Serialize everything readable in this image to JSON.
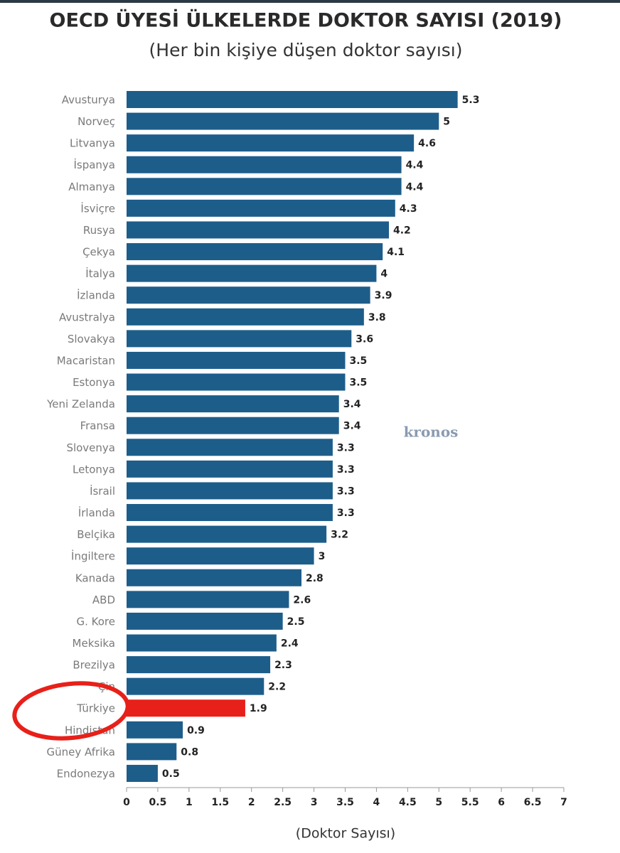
{
  "chart_data": {
    "type": "barh",
    "title": "OECD ÜYESİ ÜLKELERDE DOKTOR SAYISI (2019)",
    "subtitle": "(Her bin kişiye düşen doktor sayısı)",
    "x_label": "(Doktor Sayısı)",
    "watermark": "kronos",
    "categories": [
      "Avusturya",
      "Norveç",
      "Litvanya",
      "İspanya",
      "Almanya",
      "İsviçre",
      "Rusya",
      "Çekya",
      "İtalya",
      "İzlanda",
      "Avustralya",
      "Slovakya",
      "Macaristan",
      "Estonya",
      "Yeni Zelanda",
      "Fransa",
      "Slovenya",
      "Letonya",
      "İsrail",
      "İrlanda",
      "Belçika",
      "İngiltere",
      "Kanada",
      "ABD",
      "G. Kore",
      "Meksika",
      "Brezilya",
      "Çin",
      "Türkiye",
      "Hindistan",
      "Güney Afrika",
      "Endonezya"
    ],
    "values": [
      5.3,
      5,
      4.6,
      4.4,
      4.4,
      4.3,
      4.2,
      4.1,
      4,
      3.9,
      3.8,
      3.6,
      3.5,
      3.5,
      3.4,
      3.4,
      3.3,
      3.3,
      3.3,
      3.3,
      3.2,
      3,
      2.8,
      2.6,
      2.5,
      2.4,
      2.3,
      2.2,
      1.9,
      0.9,
      0.8,
      0.5
    ],
    "colors": [
      "#1d5d8a",
      "#1d5d8a",
      "#1d5d8a",
      "#1d5d8a",
      "#1d5d8a",
      "#1d5d8a",
      "#1d5d8a",
      "#1d5d8a",
      "#1d5d8a",
      "#1d5d8a",
      "#1d5d8a",
      "#1d5d8a",
      "#1d5d8a",
      "#1d5d8a",
      "#1d5d8a",
      "#1d5d8a",
      "#1d5d8a",
      "#1d5d8a",
      "#1d5d8a",
      "#1d5d8a",
      "#1d5d8a",
      "#1d5d8a",
      "#1d5d8a",
      "#1d5d8a",
      "#1d5d8a",
      "#1d5d8a",
      "#1d5d8a",
      "#1d5d8a",
      "#e8201a",
      "#1d5d8a",
      "#1d5d8a",
      "#1d5d8a"
    ],
    "xlim": [
      0,
      7
    ],
    "xticks": [
      0,
      0.5,
      1,
      1.5,
      2,
      2.5,
      3,
      3.5,
      4,
      4.5,
      5,
      5.5,
      6,
      6.5,
      7
    ]
  }
}
